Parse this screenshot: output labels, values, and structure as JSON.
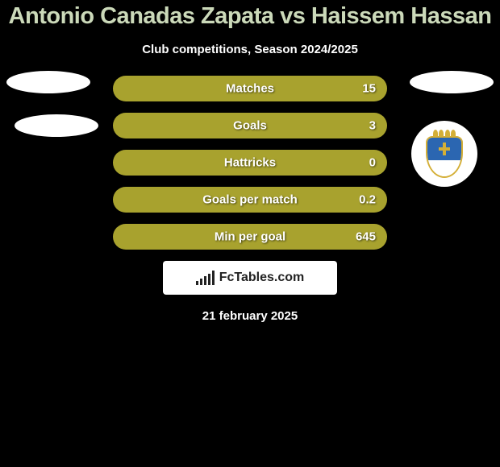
{
  "title": {
    "text": "Antonio Canadas Zapata vs Haissem Hassan",
    "color": "#cbd9b9",
    "fontsize": 29
  },
  "subtitle": {
    "text": "Club competitions, Season 2024/2025",
    "color": "#ffffff",
    "fontsize": 15
  },
  "bars": {
    "bar_color": "#a8a22e",
    "label_color": "#ffffff",
    "value_color": "#ffffff",
    "label_fontsize": 15,
    "value_fontsize": 15,
    "rows": [
      {
        "label": "Matches",
        "value": "15"
      },
      {
        "label": "Goals",
        "value": "3"
      },
      {
        "label": "Hattricks",
        "value": "0"
      },
      {
        "label": "Goals per match",
        "value": "0.2"
      },
      {
        "label": "Min per goal",
        "value": "645"
      }
    ]
  },
  "avatars": {
    "left_top": {
      "w": 104,
      "h": 28,
      "bg": "#ffffff"
    },
    "left_mid": {
      "w": 104,
      "h": 28,
      "bg": "#ffffff"
    },
    "right_top": {
      "w": 104,
      "h": 28,
      "bg": "#ffffff"
    }
  },
  "badge": {
    "diameter": 82,
    "bg": "#ffffff",
    "shield_border": "#d4af37",
    "shield_top_bg": "#2b66b1",
    "shield_bot_bg": "#ffffff",
    "cross_color": "#d4af37",
    "crown_color": "#d4af37"
  },
  "logo": {
    "bg": "#ffffff",
    "text": "FcTables.com",
    "text_color": "#222222",
    "fontsize": 16,
    "bar_color": "#222222",
    "bar_heights": [
      5,
      8,
      11,
      14,
      18
    ]
  },
  "date": {
    "text": "21 february 2025",
    "color": "#ffffff",
    "fontsize": 15
  },
  "background_color": "#000000"
}
